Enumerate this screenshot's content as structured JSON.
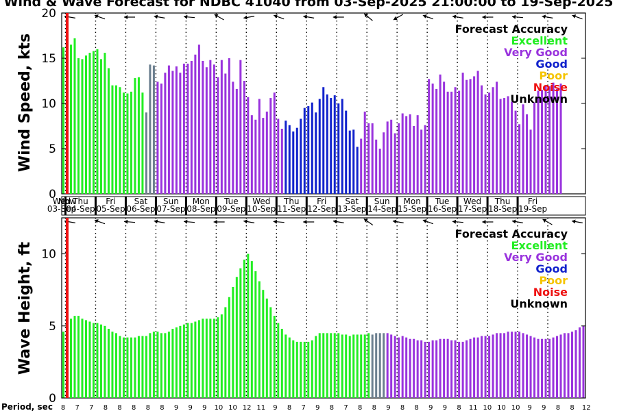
{
  "chart_data": {
    "title": "Wind & Wave Forecast for NDBC 41040 from 03-Sep-2025 21:00:00 to 19-Sep-2025",
    "type": "bar",
    "x_start_hour": 21,
    "hours_per_bar": 3,
    "now_marker_label": "Now",
    "now_marker_index": 1,
    "colors": {
      "Excellent": "#22ee22",
      "Very Good": "#9933dd",
      "Good": "#1122cc",
      "Poor": "#f5c400",
      "Noise": "#ee1111",
      "Unknown": "#000000",
      "Transition": "#6b7f8f"
    },
    "legend": {
      "title": "Forecast Accuracy",
      "items": [
        {
          "label": "Excellent",
          "color": "#22ee22"
        },
        {
          "label": "Very Good",
          "color": "#9933dd"
        },
        {
          "label": "Good",
          "color": "#1122cc"
        },
        {
          "label": "Poor",
          "color": "#f5c400"
        },
        {
          "label": "Noise",
          "color": "#ee1111"
        },
        {
          "label": "Unknown",
          "color": "#000000"
        }
      ]
    },
    "days": [
      {
        "dow": "Wed",
        "date": "03-Sep"
      },
      {
        "dow": "Thu",
        "date": "04-Sep"
      },
      {
        "dow": "Fri",
        "date": "05-Sep"
      },
      {
        "dow": "Sat",
        "date": "06-Sep"
      },
      {
        "dow": "Sun",
        "date": "07-Sep"
      },
      {
        "dow": "Mon",
        "date": "08-Sep"
      },
      {
        "dow": "Tue",
        "date": "09-Sep"
      },
      {
        "dow": "Wed",
        "date": "10-Sep"
      },
      {
        "dow": "Thu",
        "date": "11-Sep"
      },
      {
        "dow": "Fri",
        "date": "12-Sep"
      },
      {
        "dow": "Sat",
        "date": "13-Sep"
      },
      {
        "dow": "Sun",
        "date": "14-Sep"
      },
      {
        "dow": "Mon",
        "date": "15-Sep"
      },
      {
        "dow": "Tue",
        "date": "16-Sep"
      },
      {
        "dow": "Wed",
        "date": "17-Sep"
      },
      {
        "dow": "Thu",
        "date": "18-Sep"
      },
      {
        "dow": "Fri",
        "date": "19-Sep"
      }
    ],
    "wind": {
      "ylabel": "Wind Speed, kts",
      "ylim": [
        0,
        20
      ],
      "yticks": [
        0,
        5,
        10,
        15,
        20
      ],
      "direction_arrows_deg": [
        100,
        110,
        90,
        100,
        95,
        120,
        80,
        110,
        100,
        90,
        130,
        60,
        110,
        100,
        90,
        95,
        100,
        110
      ],
      "segments": [
        {
          "cat": "Excellent",
          "values": [
            16.2,
            17.0,
            16.5,
            17.2,
            15.0,
            14.9,
            15.3,
            15.6,
            15.8,
            16.0,
            14.9,
            15.6,
            13.9,
            12.0,
            12.0,
            11.8,
            11.2,
            11.1,
            11.3,
            12.8,
            12.9,
            11.2
          ]
        },
        {
          "cat": "Transition",
          "values": [
            9.0,
            14.3,
            14.2
          ]
        },
        {
          "cat": "Very Good",
          "values": [
            12.4,
            12.2,
            13.4,
            14.2,
            13.6,
            14.1,
            13.4,
            14.4,
            14.4,
            14.7,
            15.4,
            16.5,
            14.7,
            14.0,
            14.8,
            14.3,
            12.9,
            14.8,
            13.3,
            15.0,
            12.4,
            11.6,
            14.8,
            12.5,
            10.7,
            8.7,
            8.2,
            10.5,
            8.4,
            9.1,
            10.6,
            11.2,
            8.3,
            7.2
          ]
        },
        {
          "cat": "Good",
          "values": [
            8.1,
            7.6,
            6.9,
            7.3,
            8.3,
            9.5,
            9.7,
            10.1,
            9.0,
            10.5,
            11.8,
            11.0,
            10.6,
            10.9,
            10.0,
            10.5,
            9.2,
            7.0,
            7.1,
            5.2
          ]
        },
        {
          "cat": "Very Good",
          "values": [
            6.1,
            9.1,
            7.8,
            7.8,
            6.0,
            5.0,
            6.8,
            8.0,
            8.2,
            6.7,
            7.8,
            8.9,
            8.6,
            8.8,
            7.5,
            8.7,
            7.1,
            7.6,
            12.7,
            12.2,
            11.6,
            13.2,
            12.4,
            11.3,
            11.3,
            11.8,
            11.4,
            13.4,
            12.6,
            12.7,
            13.0,
            13.6,
            12.0,
            11.0,
            11.2,
            11.8,
            12.4,
            10.5,
            10.6,
            10.8,
            10.2,
            9.2,
            7.7,
            9.9,
            8.8,
            7.1,
            10.1,
            11.4,
            11.5,
            12.0,
            11.9,
            12.3,
            11.6,
            12.2
          ]
        }
      ]
    },
    "wave": {
      "ylabel": "Wave Height, ft",
      "ylim": [
        0,
        12.5
      ],
      "yticks": [
        0,
        5,
        10
      ],
      "direction_arrows_deg": [
        100,
        110,
        95,
        100,
        95,
        90,
        100,
        95,
        90,
        100,
        125,
        100,
        110,
        95,
        90,
        100,
        120,
        100
      ],
      "period_label": "Period, sec",
      "periods": [
        8,
        7,
        7,
        8,
        8,
        8,
        8,
        8,
        9,
        9,
        9,
        10,
        10,
        12,
        11,
        9,
        8,
        7,
        9,
        8,
        7,
        8,
        8,
        9,
        8,
        8,
        9,
        9,
        8,
        11,
        10,
        10,
        10,
        9,
        9,
        8,
        8,
        12
      ],
      "segments": [
        {
          "cat": "Excellent",
          "values": [
            4.6,
            4.8,
            5.5,
            5.7,
            5.7,
            5.5,
            5.4,
            5.3,
            5.2,
            5.2,
            5.1,
            5.0,
            4.8,
            4.6,
            4.5,
            4.3,
            4.2,
            4.2,
            4.2,
            4.2,
            4.3,
            4.3,
            4.3,
            4.5,
            4.6,
            4.6,
            4.5,
            4.5,
            4.6,
            4.8,
            4.9,
            5.0,
            5.1,
            5.2,
            5.2,
            5.3,
            5.4,
            5.5,
            5.5,
            5.5,
            5.5,
            5.6,
            5.8,
            6.3,
            7.0,
            7.7,
            8.4,
            9.0,
            9.6,
            10.0,
            9.5,
            8.8,
            8.1,
            7.5,
            6.9,
            6.3,
            5.7,
            5.2,
            4.8,
            4.4,
            4.2,
            4.0,
            3.9,
            3.9,
            3.9,
            3.9,
            4.0,
            4.3,
            4.5,
            4.5,
            4.5,
            4.5,
            4.5,
            4.5,
            4.4,
            4.4,
            4.3,
            4.4,
            4.4,
            4.4,
            4.4,
            4.5
          ]
        },
        {
          "cat": "Transition",
          "values": [
            4.4,
            4.5,
            4.5,
            4.5
          ]
        },
        {
          "cat": "Very Good",
          "values": [
            4.5,
            4.4,
            4.3,
            4.2,
            4.3,
            4.2,
            4.1,
            4.1,
            4.0,
            4.0,
            3.9,
            3.9,
            4.0,
            4.0,
            4.1,
            4.1,
            4.1,
            4.0,
            4.0,
            3.9,
            3.9,
            4.0,
            4.1,
            4.2,
            4.2,
            4.3,
            4.3,
            4.3,
            4.4,
            4.5,
            4.5,
            4.5,
            4.6,
            4.6,
            4.6,
            4.6,
            4.5,
            4.4,
            4.3,
            4.2,
            4.1,
            4.1,
            4.1,
            4.1,
            4.2,
            4.3,
            4.4,
            4.5,
            4.5,
            4.6,
            4.7,
            4.9,
            5.0
          ]
        }
      ]
    }
  }
}
